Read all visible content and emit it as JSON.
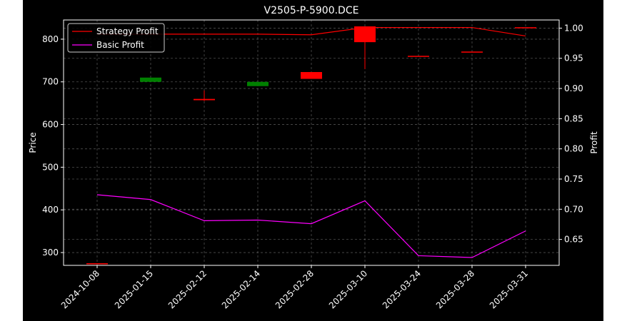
{
  "chart_data": {
    "type": "candlestick+line",
    "title": "V2505-P-5900.DCE",
    "ylabel_left": "Price",
    "ylabel_right": "Profit",
    "categories": [
      "2024-10-08",
      "2025-01-15",
      "2025-02-12",
      "2025-02-14",
      "2025-02-28",
      "2025-03-10",
      "2025-03-24",
      "2025-03-28",
      "2025-03-31"
    ],
    "ylim_left": [
      270,
      845
    ],
    "ylim_right": [
      0.607,
      1.0135
    ],
    "yticks_left": [
      300,
      400,
      500,
      600,
      700,
      800
    ],
    "yticks_right": [
      0.65,
      0.7,
      0.75,
      0.8,
      0.85,
      0.9,
      0.95,
      1.0
    ],
    "yticks_right_labels": [
      "0.65",
      "0.70",
      "0.75",
      "0.80",
      "0.85",
      "0.90",
      "0.95",
      "1.00"
    ],
    "grid": true,
    "legend_position": "top-left",
    "candles": [
      {
        "date": "2024-10-08",
        "open": 275,
        "close": 275,
        "high": 275,
        "low": 275,
        "color": "#ff0000"
      },
      {
        "date": "2025-01-15",
        "open": 700,
        "close": 710,
        "high": 710,
        "low": 700,
        "color": "#008000"
      },
      {
        "date": "2025-02-12",
        "open": 660,
        "close": 657,
        "high": 680,
        "low": 655,
        "color": "#ff0000"
      },
      {
        "date": "2025-02-14",
        "open": 690,
        "close": 700,
        "high": 700,
        "low": 690,
        "color": "#008000"
      },
      {
        "date": "2025-02-28",
        "open": 723,
        "close": 707,
        "high": 723,
        "low": 707,
        "color": "#ff0000"
      },
      {
        "date": "2025-03-10",
        "open": 830,
        "close": 793,
        "high": 830,
        "low": 730,
        "color": "#ff0000"
      },
      {
        "date": "2025-03-24",
        "open": 761,
        "close": 761,
        "high": 761,
        "low": 761,
        "color": "#ff0000"
      },
      {
        "date": "2025-03-28",
        "open": 771,
        "close": 771,
        "high": 771,
        "low": 771,
        "color": "#ff0000"
      },
      {
        "date": "2025-03-31",
        "open": 828,
        "close": 828,
        "high": 828,
        "low": 828,
        "color": "#ff0000"
      }
    ],
    "series": [
      {
        "name": "Strategy Profit",
        "color": "#ff0000",
        "axis": "right",
        "values": [
          0.99,
          0.99,
          0.99,
          0.99,
          0.989,
          1.001,
          1.001,
          1.001,
          0.987
        ]
      },
      {
        "name": "Basic Profit",
        "color": "#ff00ff",
        "axis": "right",
        "values": [
          0.724,
          0.716,
          0.681,
          0.682,
          0.676,
          0.714,
          0.623,
          0.62,
          0.664
        ]
      }
    ]
  }
}
